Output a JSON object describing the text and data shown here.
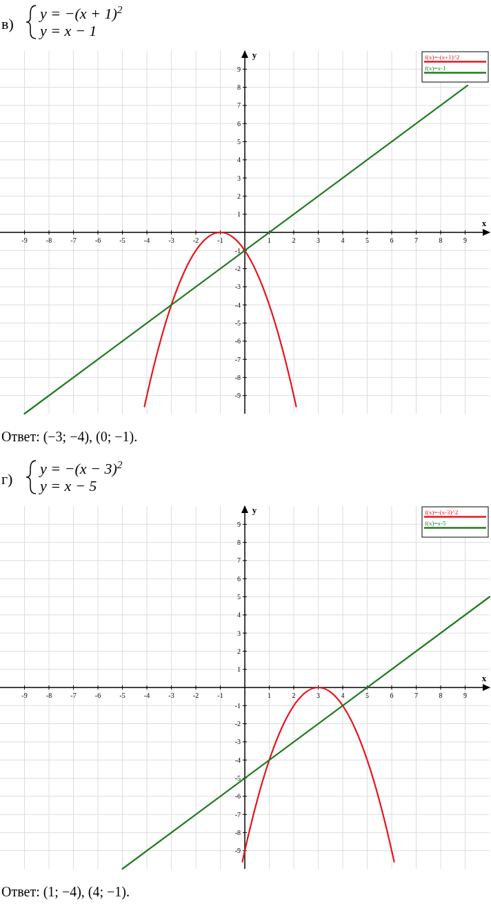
{
  "chart_data": [
    {
      "type": "line",
      "title": "в)",
      "annotations": [
        "y = −(x + 1)$^{2}$",
        "y = x − 1",
        "Ответ: (−3; −4), (0; −1)."
      ],
      "xlabel": "x",
      "ylabel": "y",
      "xlim": [
        -10,
        10
      ],
      "ylim": [
        -10,
        10
      ],
      "xticks": [
        -9,
        -8,
        -7,
        -6,
        -5,
        -4,
        -3,
        -2,
        -1,
        1,
        2,
        3,
        4,
        5,
        6,
        7,
        8,
        9
      ],
      "yticks": [
        -9,
        -8,
        -7,
        -6,
        -5,
        -4,
        -3,
        -2,
        -1,
        1,
        2,
        3,
        4,
        5,
        6,
        7,
        8,
        9
      ],
      "grid": true,
      "legend": "top right",
      "series": [
        {
          "name": "f(x)=-(x+1)^2",
          "color": "#e8141b",
          "x": [
            -4.1,
            -4,
            -3.5,
            -3,
            -2.5,
            -2,
            -1.5,
            -1,
            -0.5,
            0,
            0.5,
            1,
            1.5,
            2,
            2.1
          ],
          "values": [
            -9.61,
            -9,
            -6.25,
            -4,
            -2.25,
            -1,
            -0.25,
            0,
            -0.25,
            -1,
            -2.25,
            -4,
            -6.25,
            -9,
            -9.61
          ]
        },
        {
          "name": "f(x)=x-1",
          "color": "#1f7a1f",
          "x": [
            -9,
            9.1
          ],
          "values": [
            -10,
            8.1
          ]
        }
      ]
    },
    {
      "type": "line",
      "title": "г)",
      "annotations": [
        "y = −(x − 3)$^{2}$",
        "y = x − 5",
        "Ответ: (1; −4), (4; −1)."
      ],
      "xlabel": "x",
      "ylabel": "y",
      "xlim": [
        -10,
        10
      ],
      "ylim": [
        -10,
        10
      ],
      "xticks": [
        -9,
        -8,
        -7,
        -6,
        -5,
        -4,
        -3,
        -2,
        -1,
        1,
        2,
        3,
        4,
        5,
        6,
        7,
        8,
        9
      ],
      "yticks": [
        -9,
        -8,
        -7,
        -6,
        -5,
        -4,
        -3,
        -2,
        -1,
        1,
        2,
        3,
        4,
        5,
        6,
        7,
        8,
        9
      ],
      "grid": true,
      "legend": "top right",
      "series": [
        {
          "name": "f(x)=-(x-3)^2",
          "color": "#e8141b",
          "x": [
            -0.1,
            0,
            0.5,
            1,
            1.5,
            2,
            2.5,
            3,
            3.5,
            4,
            4.5,
            5,
            5.5,
            6,
            6.1
          ],
          "values": [
            -9.61,
            -9,
            -6.25,
            -4,
            -2.25,
            -1,
            -0.25,
            0,
            -0.25,
            -1,
            -2.25,
            -4,
            -6.25,
            -9,
            -9.61
          ]
        },
        {
          "name": "f(x)=x-5",
          "color": "#1f7a1f",
          "x": [
            -5,
            10
          ],
          "values": [
            -10,
            5
          ]
        }
      ]
    }
  ]
}
